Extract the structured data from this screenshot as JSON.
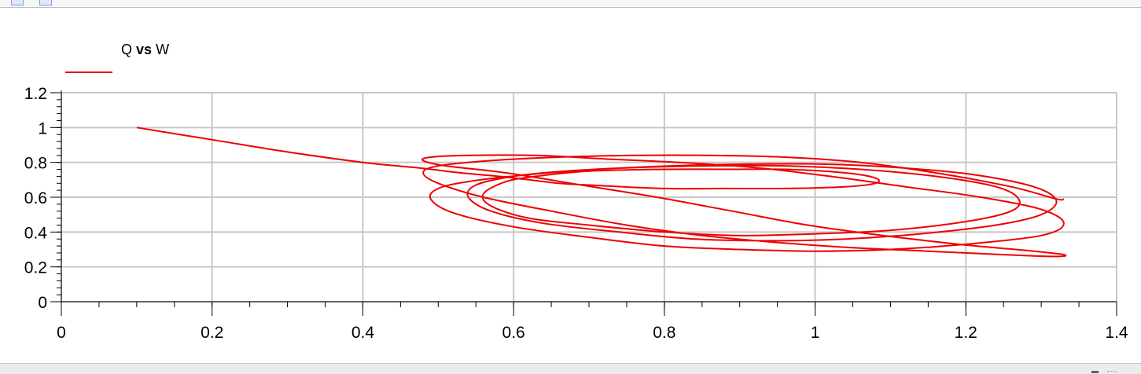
{
  "colors": {
    "series": "#ee0000",
    "grid": "#c8c8c8",
    "axis": "#000000"
  },
  "legend": {
    "left": "Q",
    "middle": "vs",
    "right": "W"
  },
  "chart_data": {
    "type": "line",
    "title": "",
    "xlabel": "",
    "ylabel": "",
    "xlim": [
      0,
      1.4
    ],
    "ylim": [
      0,
      1.2
    ],
    "x_ticks": [
      "0",
      "0.2",
      "0.4",
      "0.6",
      "0.8",
      "1",
      "1.2",
      "1.4"
    ],
    "y_ticks": [
      "0",
      "0.2",
      "0.4",
      "0.6",
      "0.8",
      "1",
      "1.2"
    ],
    "grid": true,
    "legend_position": "top-left",
    "series": [
      {
        "name": "Q vs W",
        "x": [
          0.1,
          0.2,
          0.3,
          0.4,
          0.47,
          0.53,
          0.58,
          0.62,
          0.66,
          0.7,
          0.8,
          0.88,
          0.96,
          1.04,
          1.08,
          1.08,
          1.04,
          0.96,
          0.88,
          0.8,
          0.7,
          0.63,
          0.59,
          0.56,
          0.57,
          0.62,
          0.7,
          0.8,
          0.9,
          1.0,
          1.1,
          1.2,
          1.26,
          1.27,
          1.24,
          1.16,
          1.06,
          0.96,
          0.86,
          0.76,
          0.67,
          0.6,
          0.55,
          0.54,
          0.57,
          0.64,
          0.74,
          0.84,
          0.94,
          1.04,
          1.14,
          1.24,
          1.3,
          1.32,
          1.29,
          1.21,
          1.11,
          1.01,
          0.91,
          0.81,
          0.71,
          0.62,
          0.54,
          0.5,
          0.49,
          0.52,
          0.6,
          0.7,
          0.8,
          0.9,
          1.0,
          1.1,
          1.2,
          1.3,
          1.33,
          1.3,
          1.22,
          1.12,
          1.02,
          0.92,
          0.82,
          0.72,
          0.63,
          0.54,
          0.49,
          0.48,
          0.51,
          0.59,
          0.69,
          0.79,
          0.89,
          0.99,
          1.09,
          1.19,
          1.29,
          1.33,
          1.32,
          1.25,
          1.15,
          1.05,
          0.95,
          0.85,
          0.75,
          0.65,
          0.56,
          0.5,
          0.48,
          0.5,
          0.57,
          0.66,
          0.76,
          0.86,
          0.96,
          1.06,
          1.16,
          1.26,
          1.32,
          1.33
        ],
        "y": [
          1.0,
          0.93,
          0.86,
          0.8,
          0.77,
          0.74,
          0.72,
          0.7,
          0.68,
          0.67,
          0.65,
          0.65,
          0.65,
          0.66,
          0.68,
          0.71,
          0.74,
          0.76,
          0.76,
          0.76,
          0.75,
          0.72,
          0.69,
          0.62,
          0.55,
          0.48,
          0.44,
          0.4,
          0.38,
          0.39,
          0.41,
          0.46,
          0.52,
          0.59,
          0.66,
          0.72,
          0.76,
          0.78,
          0.78,
          0.77,
          0.75,
          0.72,
          0.67,
          0.6,
          0.52,
          0.45,
          0.4,
          0.36,
          0.35,
          0.36,
          0.39,
          0.44,
          0.5,
          0.58,
          0.66,
          0.73,
          0.77,
          0.79,
          0.79,
          0.78,
          0.76,
          0.73,
          0.69,
          0.65,
          0.59,
          0.51,
          0.43,
          0.37,
          0.32,
          0.3,
          0.29,
          0.3,
          0.33,
          0.38,
          0.45,
          0.53,
          0.6,
          0.66,
          0.72,
          0.77,
          0.8,
          0.82,
          0.84,
          0.84,
          0.83,
          0.81,
          0.78,
          0.74,
          0.67,
          0.6,
          0.52,
          0.44,
          0.38,
          0.33,
          0.29,
          0.27,
          0.26,
          0.27,
          0.29,
          0.31,
          0.34,
          0.38,
          0.44,
          0.52,
          0.6,
          0.68,
          0.74,
          0.78,
          0.81,
          0.83,
          0.84,
          0.84,
          0.83,
          0.8,
          0.74,
          0.66,
          0.59,
          0.59
        ]
      }
    ]
  }
}
